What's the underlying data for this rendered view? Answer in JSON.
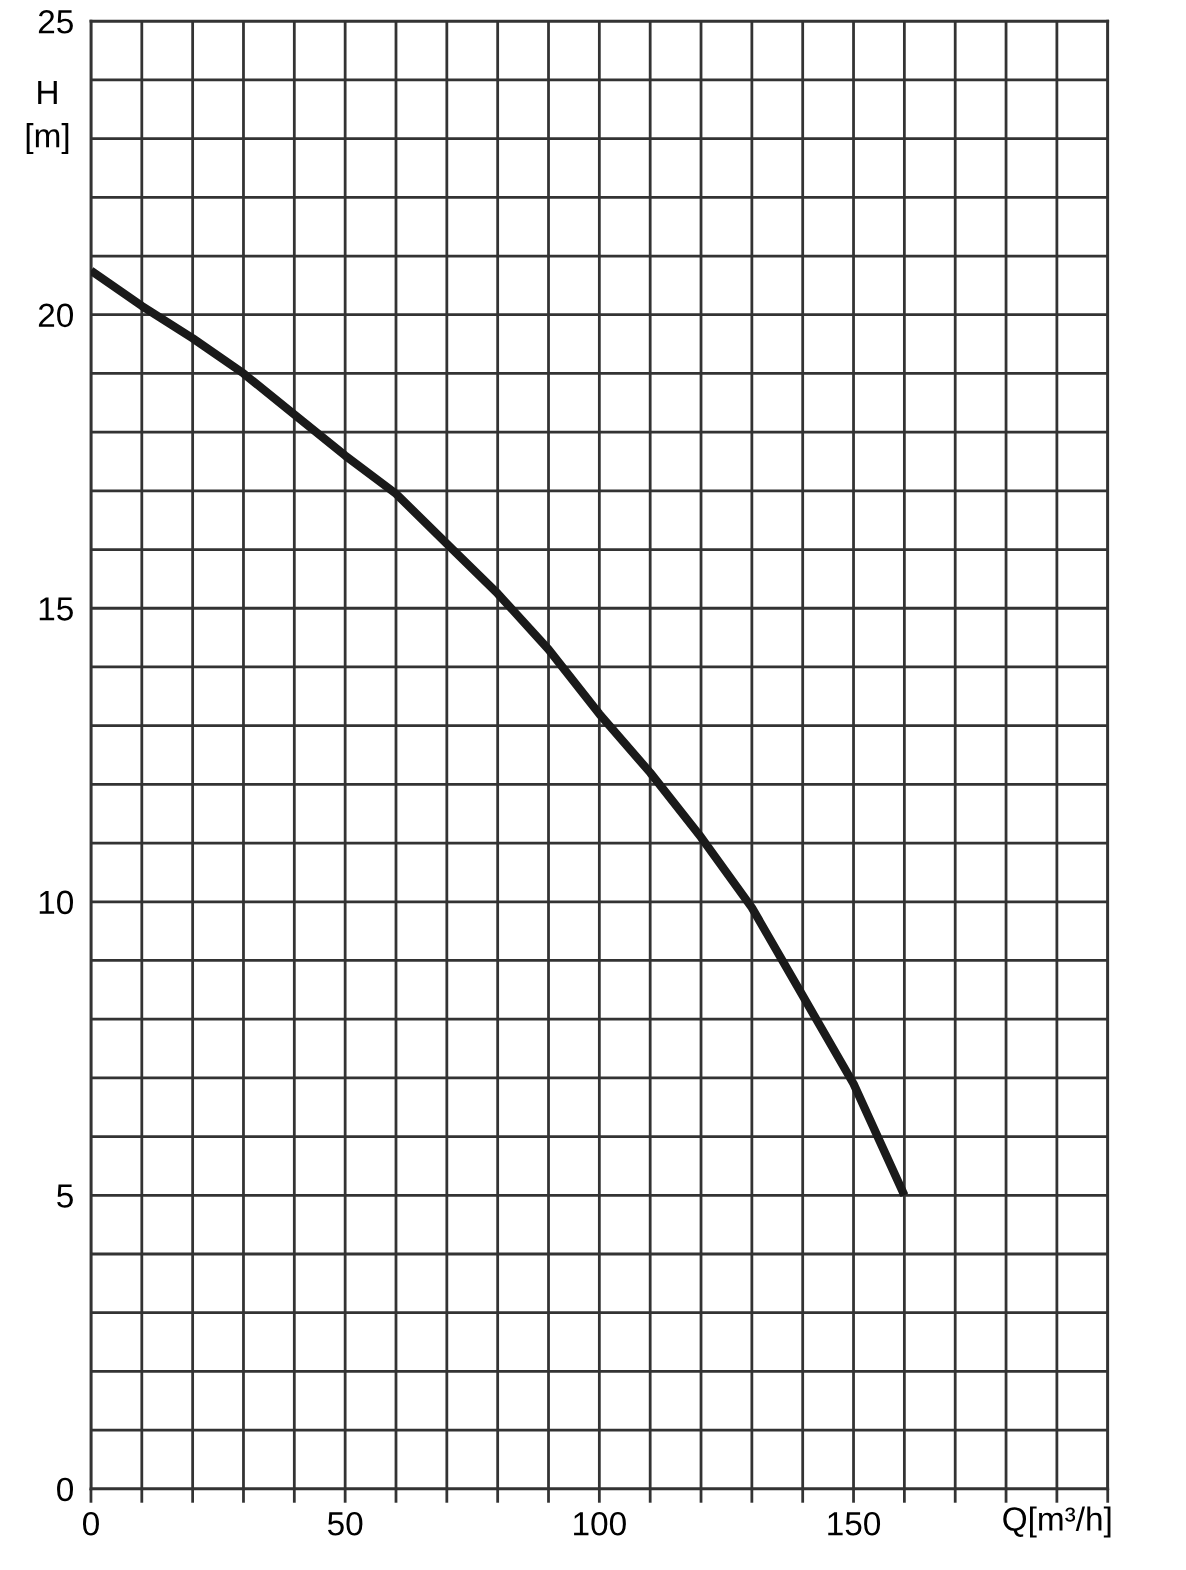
{
  "chart_data": {
    "type": "line",
    "xlabel": "Q[m³/h]",
    "ylabel": "H\n[m]",
    "x": [
      0,
      10,
      20,
      30,
      40,
      50,
      60,
      70,
      80,
      90,
      100,
      110,
      120,
      130,
      140,
      150,
      160
    ],
    "series": [
      {
        "color": "#1a1a1a",
        "values": [
          20.75,
          20.15,
          19.6,
          19.0,
          18.3,
          17.6,
          16.95,
          16.1,
          15.25,
          14.3,
          13.2,
          12.2,
          11.1,
          9.9,
          8.4,
          6.9,
          5.0
        ]
      }
    ],
    "xlim": [
      0,
      200
    ],
    "ylim": [
      0,
      25
    ],
    "xticks": [
      0,
      {
        "value": 10,
        "label": null
      },
      {
        "value": 20,
        "label": null
      },
      {
        "value": 30,
        "label": null
      },
      {
        "value": 40,
        "label": null
      },
      50,
      {
        "value": 60,
        "label": null
      },
      {
        "value": 70,
        "label": null
      },
      {
        "value": 80,
        "label": null
      },
      {
        "value": 90,
        "label": null
      },
      100,
      {
        "value": 110,
        "label": null
      },
      {
        "value": 120,
        "label": null
      },
      {
        "value": 130,
        "label": null
      },
      {
        "value": 140,
        "label": null
      },
      150,
      {
        "value": 160,
        "label": null
      },
      {
        "value": 170,
        "label": null
      },
      {
        "value": 180,
        "label": null
      },
      {
        "value": 190,
        "label": null
      },
      {
        "value": 200,
        "label": null
      }
    ],
    "yticks": [
      0,
      {
        "value": 1,
        "label": null
      },
      {
        "value": 2,
        "label": null
      },
      {
        "value": 3,
        "label": null
      },
      {
        "value": 4,
        "label": null
      },
      5,
      {
        "value": 6,
        "label": null
      },
      {
        "value": 7,
        "label": null
      },
      {
        "value": 8,
        "label": null
      },
      {
        "value": 9,
        "label": null
      },
      10,
      {
        "value": 11,
        "label": null
      },
      {
        "value": 12,
        "label": null
      },
      {
        "value": 13,
        "label": null
      },
      {
        "value": 14,
        "label": null
      },
      15,
      {
        "value": 16,
        "label": null
      },
      {
        "value": 17,
        "label": null
      },
      {
        "value": 18,
        "label": null
      },
      {
        "value": 19,
        "label": null
      },
      20,
      {
        "value": 21,
        "label": null
      },
      {
        "value": 22,
        "label": null
      },
      {
        "value": 23,
        "label": null
      },
      {
        "value": 24,
        "label": null
      },
      25
    ],
    "grid": true,
    "marker": "none",
    "line_style": "solid"
  }
}
